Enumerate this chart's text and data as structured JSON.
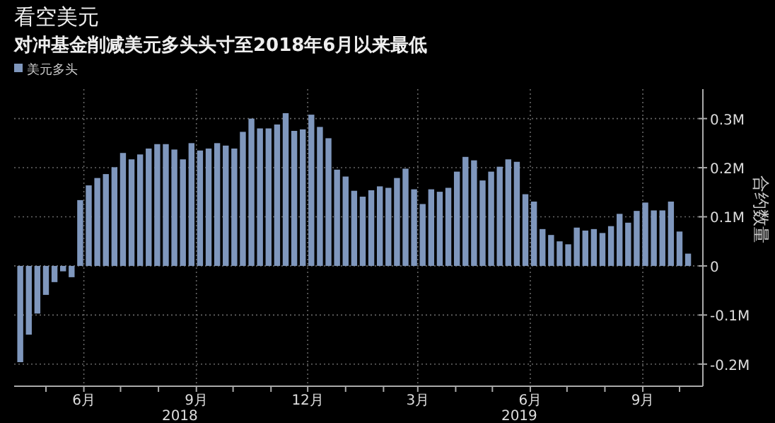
{
  "chart_data": {
    "type": "bar",
    "title": "看空美元",
    "subtitle": "对冲基金削减美元多头头寸至2018年6月以来最低",
    "ylabel": "合约数量",
    "legend": "top left",
    "grid": true,
    "x": [
      "2018-04-10",
      "2018-04-17",
      "2018-04-24",
      "2018-05-01",
      "2018-05-08",
      "2018-05-15",
      "2018-05-22",
      "2018-05-29",
      "2018-06-05",
      "2018-06-12",
      "2018-06-19",
      "2018-06-26",
      "2018-07-03",
      "2018-07-10",
      "2018-07-17",
      "2018-07-24",
      "2018-07-31",
      "2018-08-07",
      "2018-08-14",
      "2018-08-21",
      "2018-08-28",
      "2018-09-04",
      "2018-09-11",
      "2018-09-18",
      "2018-09-25",
      "2018-10-02",
      "2018-10-09",
      "2018-10-16",
      "2018-10-23",
      "2018-10-30",
      "2018-11-06",
      "2018-11-13",
      "2018-11-20",
      "2018-11-27",
      "2018-12-04",
      "2018-12-11",
      "2018-12-18",
      "2018-12-25",
      "2019-01-01",
      "2019-01-08",
      "2019-01-15",
      "2019-01-22",
      "2019-01-29",
      "2019-02-05",
      "2019-02-12",
      "2019-02-19",
      "2019-02-26",
      "2019-03-05",
      "2019-03-12",
      "2019-03-19",
      "2019-03-26",
      "2019-04-02",
      "2019-04-09",
      "2019-04-16",
      "2019-04-23",
      "2019-04-30",
      "2019-05-07",
      "2019-05-14",
      "2019-05-21",
      "2019-05-28",
      "2019-06-04",
      "2019-06-11",
      "2019-06-18",
      "2019-06-25",
      "2019-07-02",
      "2019-07-09",
      "2019-07-16",
      "2019-07-23",
      "2019-07-30",
      "2019-08-06",
      "2019-08-13",
      "2019-08-20",
      "2019-08-27",
      "2019-09-03",
      "2019-09-10",
      "2019-09-17",
      "2019-09-24",
      "2019-10-01",
      "2019-10-08"
    ],
    "series": [
      {
        "name": "美元多头",
        "color": "#7f97bd",
        "values": [
          -0.196,
          -0.14,
          -0.097,
          -0.059,
          -0.033,
          -0.011,
          -0.023,
          0.134,
          0.164,
          0.179,
          0.187,
          0.201,
          0.23,
          0.217,
          0.227,
          0.239,
          0.248,
          0.248,
          0.237,
          0.217,
          0.25,
          0.235,
          0.239,
          0.25,
          0.245,
          0.239,
          0.273,
          0.3,
          0.28,
          0.28,
          0.288,
          0.311,
          0.275,
          0.278,
          0.308,
          0.283,
          0.26,
          0.196,
          0.182,
          0.153,
          0.141,
          0.154,
          0.162,
          0.159,
          0.179,
          0.198,
          0.156,
          0.126,
          0.156,
          0.151,
          0.159,
          0.192,
          0.222,
          0.215,
          0.174,
          0.192,
          0.202,
          0.217,
          0.212,
          0.146,
          0.131,
          0.075,
          0.063,
          0.05,
          0.044,
          0.078,
          0.072,
          0.075,
          0.067,
          0.081,
          0.106,
          0.088,
          0.112,
          0.129,
          0.113,
          0.113,
          0.131,
          0.07,
          0.025
        ]
      }
    ],
    "ylim": [
      -0.245,
      0.36
    ],
    "yticks": [
      {
        "value": -0.2,
        "label": "-0.2M"
      },
      {
        "value": -0.1,
        "label": "-0.1M"
      },
      0,
      {
        "value": 0.1,
        "label": "0.1M"
      },
      {
        "value": 0.2,
        "label": "0.2M"
      },
      {
        "value": 0.3,
        "label": "0.3M"
      }
    ],
    "xlim": [
      "2018-04-05",
      "2019-10-12"
    ],
    "xticks": [
      {
        "value": "2018-05-01",
        "label": null
      },
      {
        "value": "2018-06-01",
        "label": "6月"
      },
      {
        "value": "2018-07-01",
        "label": null
      },
      {
        "value": "2018-08-01",
        "label": null
      },
      {
        "value": "2018-09-01",
        "label": "9月"
      },
      {
        "value": "2018-10-01",
        "label": null
      },
      {
        "value": "2018-11-01",
        "label": null
      },
      {
        "value": "2018-12-01",
        "label": "12月"
      },
      {
        "value": "2019-01-01",
        "label": null
      },
      {
        "value": "2019-02-01",
        "label": null
      },
      {
        "value": "2019-03-01",
        "label": "3月"
      },
      {
        "value": "2019-04-01",
        "label": null
      },
      {
        "value": "2019-05-01",
        "label": null
      },
      {
        "value": "2019-06-01",
        "label": "6月"
      },
      {
        "value": "2019-07-01",
        "label": null
      },
      {
        "value": "2019-08-01",
        "label": null
      },
      {
        "value": "2019-09-01",
        "label": "9月"
      },
      {
        "value": "2019-10-01",
        "label": null
      }
    ],
    "annotations": [
      "2018",
      "2019"
    ]
  }
}
